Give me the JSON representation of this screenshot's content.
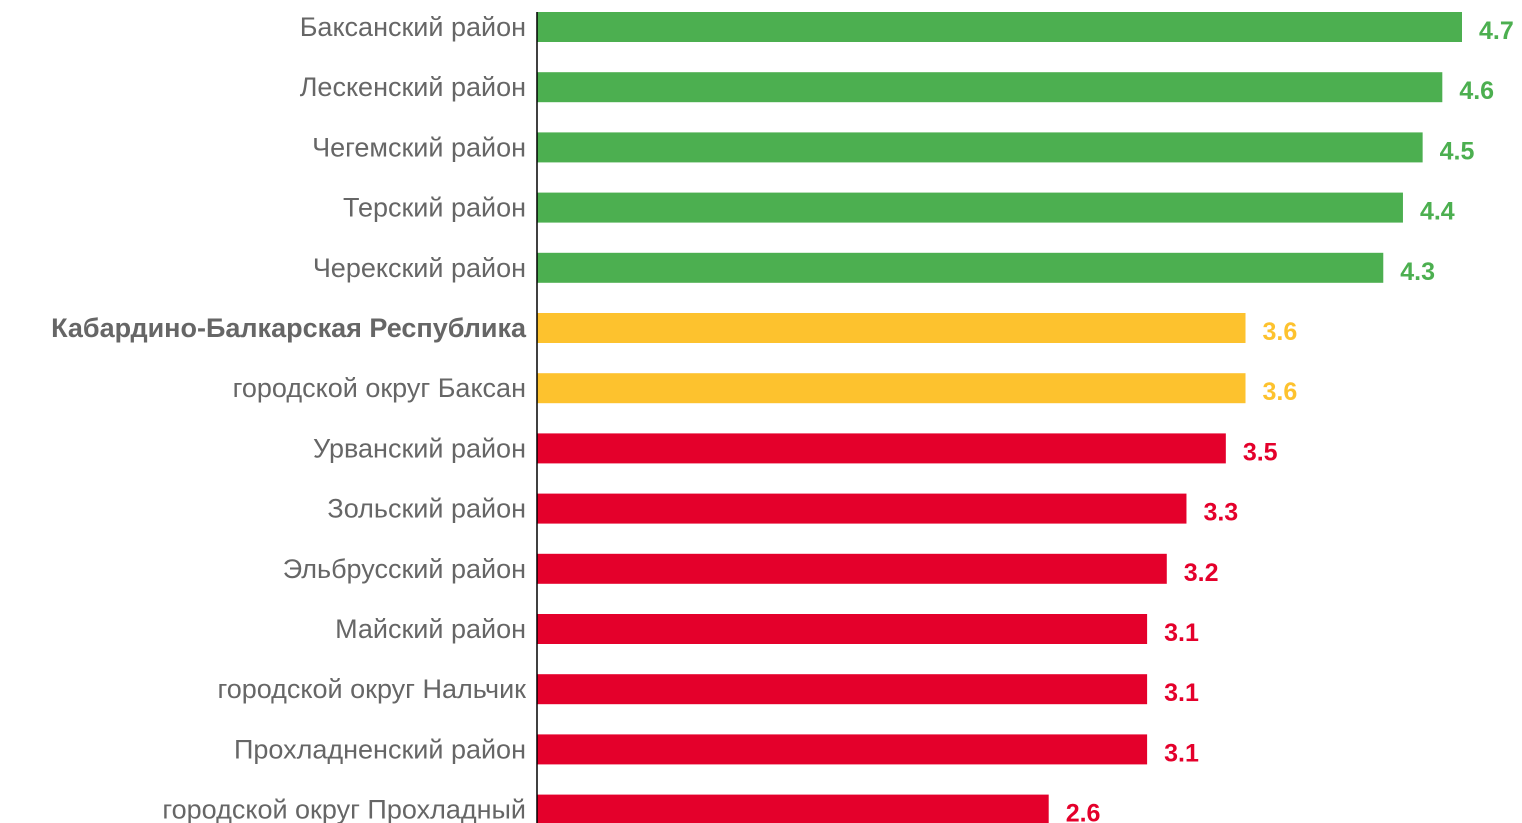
{
  "chart_data": {
    "type": "bar",
    "orientation": "horizontal",
    "title": "",
    "xlabel": "",
    "ylabel": "",
    "xlim": [
      0,
      4.7
    ],
    "grid": false,
    "legend": "none",
    "categories": [
      "Баксанский район",
      "Лескенский район",
      "Чегемский район",
      "Терский район",
      "Черекский район",
      "Кабардино-Балкарская Республика",
      "городской округ Баксан",
      "Урванский район",
      "Зольский район",
      "Эльбрусский район",
      "Майский район",
      "городской округ  Нальчик",
      "Прохладненский район",
      "городской округ Прохладный"
    ],
    "values": [
      4.7,
      4.6,
      4.5,
      4.4,
      4.3,
      3.6,
      3.6,
      3.5,
      3.3,
      3.2,
      3.1,
      3.1,
      3.1,
      2.6
    ],
    "value_labels": [
      "4.7",
      "4.6",
      "4.5",
      "4.4",
      "4.3",
      "3.6",
      "3.6",
      "3.5",
      "3.3",
      "3.2",
      "3.1",
      "3.1",
      "3.1",
      "2.6"
    ],
    "bold_categories": [
      "Кабардино-Балкарская Республика"
    ],
    "bar_colors": [
      "#4caf50",
      "#4caf50",
      "#4caf50",
      "#4caf50",
      "#4caf50",
      "#fdc22e",
      "#fdc22e",
      "#e4002b",
      "#e4002b",
      "#e4002b",
      "#e4002b",
      "#e4002b",
      "#e4002b",
      "#e4002b"
    ]
  },
  "colors": {
    "label_text": "#666666",
    "axis_line": "#000000"
  }
}
